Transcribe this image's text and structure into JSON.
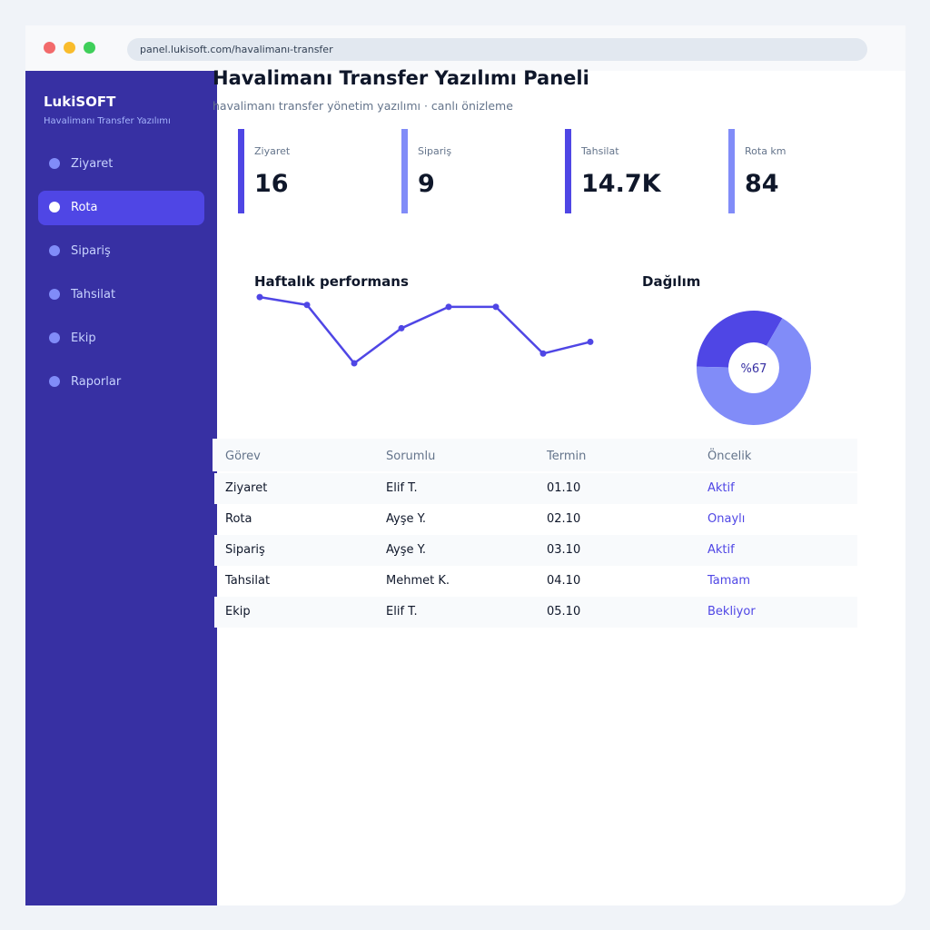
{
  "browser": {
    "url": "panel.lukisoft.com/havalimanı-transfer"
  },
  "sidebar": {
    "brand": "LukiSOFT",
    "subtitle": "Havalimanı Transfer Yazılımı",
    "items": [
      {
        "label": "Ziyaret",
        "active": false
      },
      {
        "label": "Rota",
        "active": true
      },
      {
        "label": "Sipariş",
        "active": false
      },
      {
        "label": "Tahsilat",
        "active": false
      },
      {
        "label": "Ekip",
        "active": false
      },
      {
        "label": "Raporlar",
        "active": false
      }
    ]
  },
  "header": {
    "title": "Havalimanı Transfer Yazılımı Paneli",
    "subtitle": "havalimanı transfer yönetim yazılımı · canlı önizleme"
  },
  "stats": [
    {
      "label": "Ziyaret",
      "value": "16",
      "color": "#4f46e5"
    },
    {
      "label": "Sipariş",
      "value": "9",
      "color": "#818cf8"
    },
    {
      "label": "Tahsilat",
      "value": "14.7K",
      "color": "#4f46e5"
    },
    {
      "label": "Rota km",
      "value": "84",
      "color": "#818cf8"
    }
  ],
  "performance": {
    "title": "Haftalık performans"
  },
  "distribution": {
    "title": "Dağılım",
    "center_label": "%67"
  },
  "chart_data": [
    {
      "type": "line",
      "title": "Haftalık performans",
      "x": [
        1,
        2,
        3,
        4,
        5,
        6,
        7,
        8
      ],
      "series": [
        {
          "values": [
            62,
            58,
            28,
            46,
            57,
            57,
            33,
            39
          ]
        }
      ],
      "ylim": [
        0,
        70
      ],
      "grid": false,
      "color": "#4f46e5"
    },
    {
      "type": "pie",
      "title": "Dağılım",
      "values": [
        33,
        67
      ],
      "colors": [
        "#4f46e5",
        "#818cf8"
      ],
      "donut": true,
      "center_label": "%67"
    }
  ],
  "table": {
    "headers": [
      "Görev",
      "Sorumlu",
      "Termin",
      "Öncelik"
    ],
    "rows": [
      [
        "Ziyaret",
        "Elif T.",
        "01.10",
        "Aktif"
      ],
      [
        "Rota",
        "Ayşe Y.",
        "02.10",
        "Onaylı"
      ],
      [
        "Sipariş",
        "Ayşe Y.",
        "03.10",
        "Aktif"
      ],
      [
        "Tahsilat",
        "Mehmet K.",
        "04.10",
        "Tamam"
      ],
      [
        "Ekip",
        "Elif T.",
        "05.10",
        "Bekliyor"
      ]
    ]
  },
  "colors": {
    "sidebar_bg": "#3730a3",
    "accent": "#4f46e5",
    "accent_light": "#818cf8"
  }
}
